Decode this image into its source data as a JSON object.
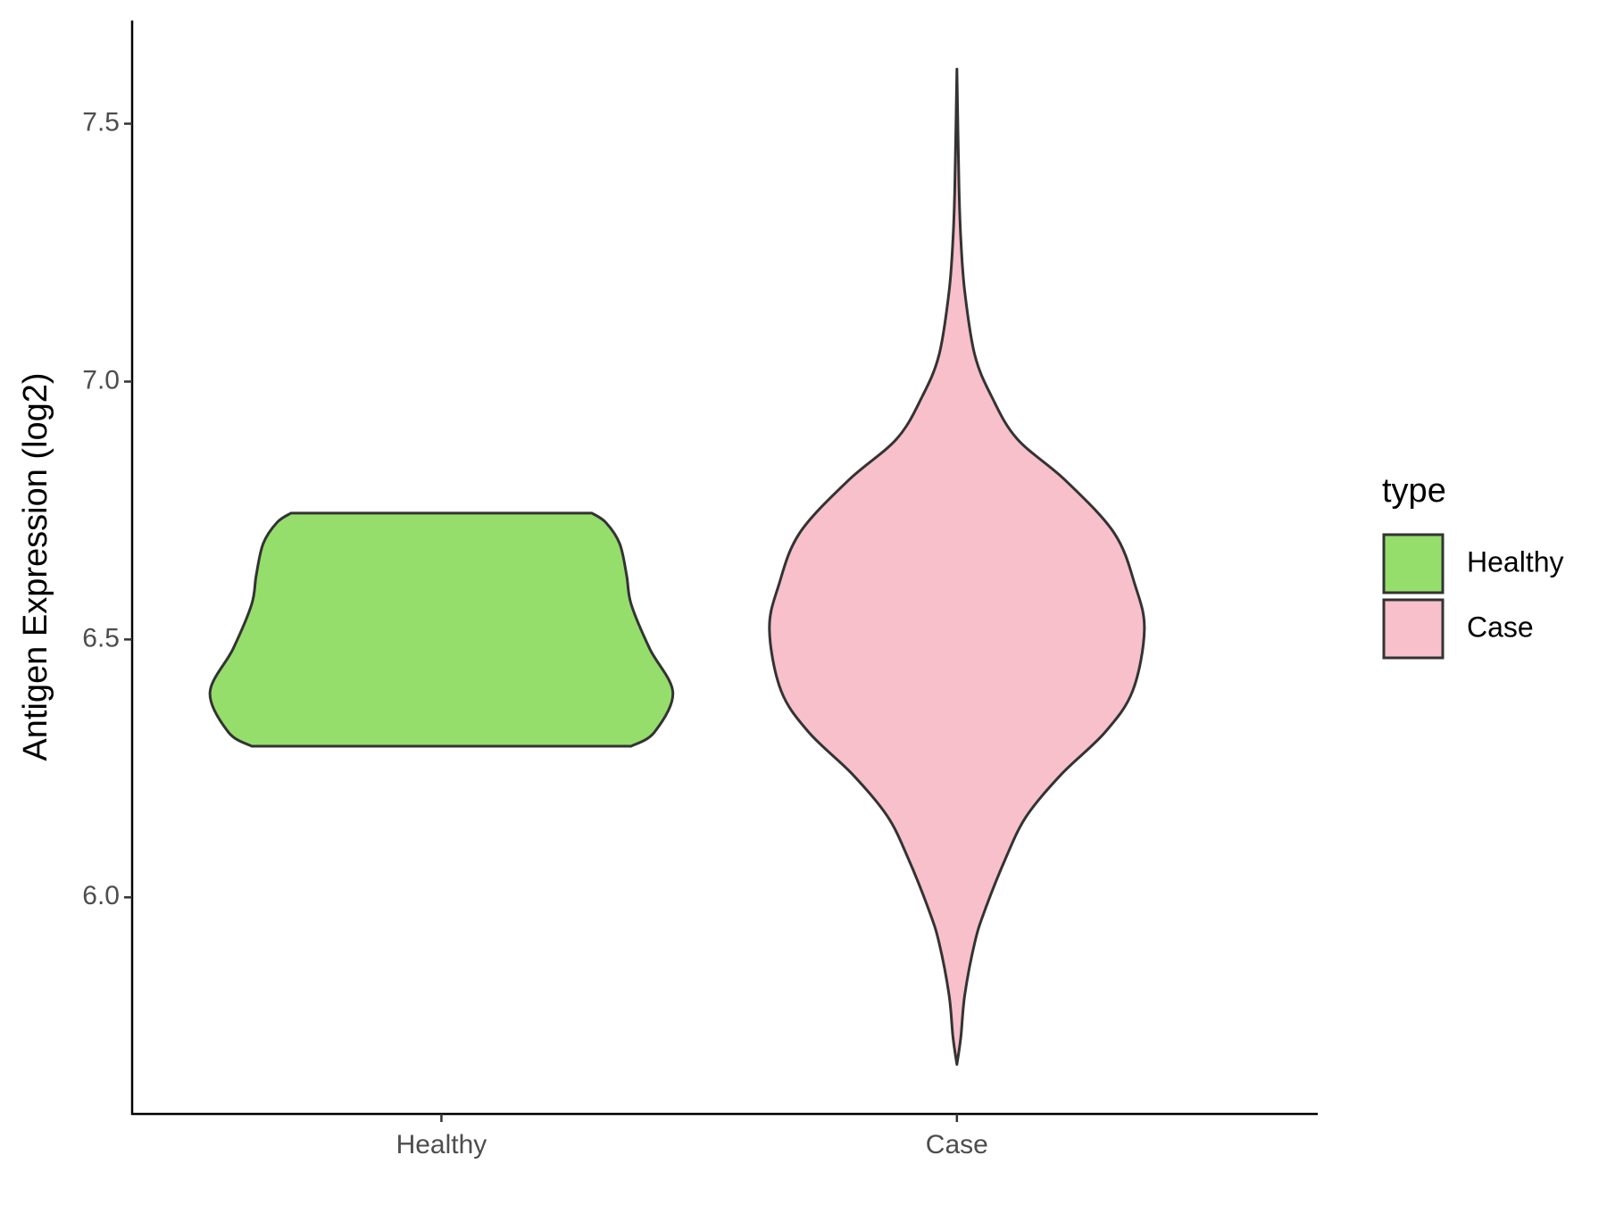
{
  "chart_data": {
    "type": "violin",
    "ylabel": "Antigen Expression (log2)",
    "categories": [
      "Healthy",
      "Case"
    ],
    "legend_title": "type",
    "legend": "right",
    "ylim": [
      5.58,
      7.7
    ],
    "yticks": [
      {
        "value": 6,
        "label": "6.0"
      },
      6.5,
      {
        "value": 7,
        "label": "7.0"
      },
      7.5
    ],
    "series": [
      {
        "name": "Healthy",
        "color": "#95de6b",
        "y": [
          6.293,
          6.32,
          6.397,
          6.482,
          6.568,
          6.625,
          6.686,
          6.727,
          6.745
        ],
        "density": [
          0.82,
          0.92,
          1.0,
          0.9,
          0.82,
          0.8,
          0.77,
          0.71,
          0.65
        ]
      },
      {
        "name": "Case",
        "color": "#f7c0cb",
        "y": [
          5.676,
          5.729,
          5.811,
          5.912,
          5.974,
          6.075,
          6.157,
          6.238,
          6.32,
          6.401,
          6.519,
          6.605,
          6.706,
          6.808,
          6.889,
          6.971,
          7.052,
          7.174,
          7.276,
          7.378,
          7.606
        ],
        "density": [
          0,
          0.017,
          0.034,
          0.077,
          0.12,
          0.21,
          0.3,
          0.45,
          0.64,
          0.76,
          0.81,
          0.77,
          0.68,
          0.47,
          0.26,
          0.15,
          0.077,
          0.034,
          0.017,
          0.009,
          0
        ]
      }
    ]
  }
}
